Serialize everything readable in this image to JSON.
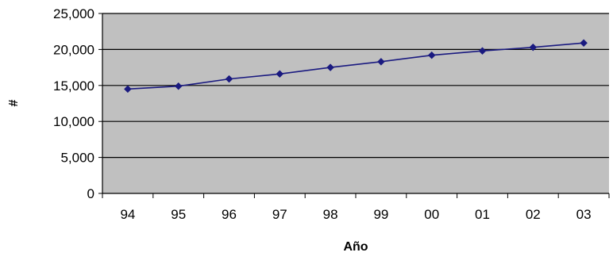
{
  "chart_data": {
    "type": "line",
    "xlabel": "Año",
    "ylabel": "#",
    "categories": [
      "94",
      "95",
      "96",
      "97",
      "98",
      "99",
      "00",
      "01",
      "02",
      "03"
    ],
    "values": [
      14500,
      14900,
      15900,
      16600,
      17500,
      18300,
      19200,
      19800,
      20300,
      20900
    ],
    "ylim": [
      0,
      25000
    ],
    "yticks": [
      0,
      5000,
      10000,
      15000,
      20000,
      25000
    ],
    "ytick_labels": [
      "0",
      "5,000",
      "10,000",
      "15,000",
      "20,000",
      "25,000"
    ],
    "grid": true,
    "legend": "none",
    "colors": {
      "plot_background": "#c0c0c0",
      "line": "#1a1a80",
      "marker": "#1a1a80",
      "gridline": "#000000",
      "axis": "#000000"
    }
  }
}
